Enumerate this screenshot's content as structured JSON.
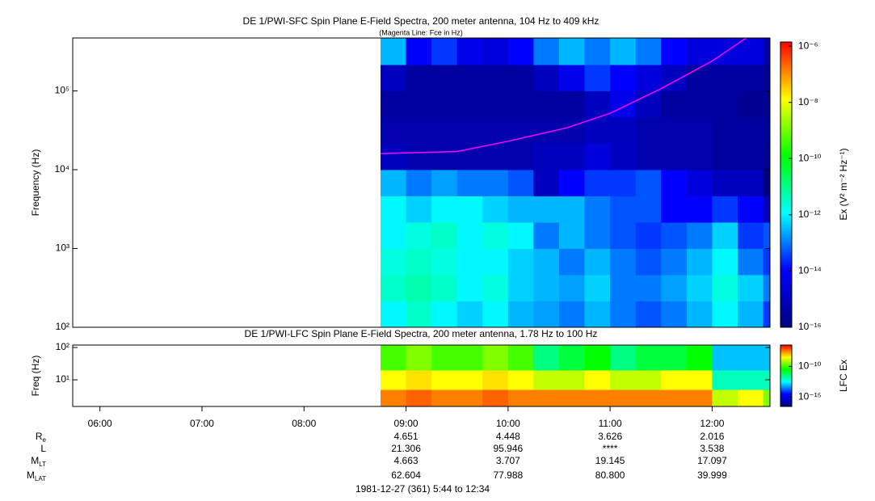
{
  "chart_data": [
    {
      "type": "heatmap",
      "title": "DE 1/PWI-SFC  Spin Plane E-Field Spectra, 200 meter antenna, 104 Hz to 409 kHz",
      "subtitle": "(Magenta Line: Fce in Hz)",
      "ylabel": "Frequency (Hz)",
      "colorbar_label": "Ex (V² m⁻² Hz⁻¹)",
      "xlim": [
        344,
        754
      ],
      "ylim": [
        100,
        470000
      ],
      "yscale": "log",
      "yticks": [
        {
          "value": 100,
          "label": "10²"
        },
        {
          "value": 1000,
          "label": "10³"
        },
        {
          "value": 10000,
          "label": "10⁴"
        },
        {
          "value": 100000,
          "label": "10⁵"
        }
      ],
      "x_bins": [
        525,
        540,
        555,
        570,
        585,
        600,
        615,
        630,
        645,
        660,
        675,
        690,
        705,
        720,
        735,
        750,
        754
      ],
      "y_bins": [
        100,
        215,
        464,
        1000,
        2150,
        4640,
        10000,
        21500,
        46400,
        100000,
        215000,
        470000
      ],
      "z": [
        [
          1e-12,
          3e-12,
          1e-12,
          5e-13,
          1e-12,
          3e-13,
          2e-13,
          1e-13,
          3e-13,
          1e-13,
          5e-14,
          1e-13,
          3e-13,
          1e-12,
          3e-13,
          3e-14
        ],
        [
          3e-12,
          5e-12,
          3e-12,
          1e-12,
          2e-12,
          5e-13,
          3e-13,
          2e-13,
          5e-13,
          1e-13,
          1e-13,
          2e-13,
          5e-13,
          2e-12,
          5e-13,
          1e-13
        ],
        [
          2e-12,
          3e-12,
          2e-12,
          1e-12,
          1e-12,
          5e-13,
          3e-13,
          1e-13,
          3e-13,
          1e-13,
          5e-14,
          1e-13,
          3e-13,
          1e-12,
          1e-13,
          3e-14
        ],
        [
          1e-12,
          2e-12,
          3e-12,
          1e-12,
          2e-12,
          1e-12,
          1e-13,
          3e-13,
          1e-13,
          5e-14,
          3e-14,
          5e-14,
          1e-13,
          5e-13,
          3e-14,
          5e-14
        ],
        [
          1e-12,
          5e-13,
          1e-12,
          1e-12,
          5e-13,
          3e-13,
          3e-13,
          3e-13,
          1e-13,
          5e-14,
          5e-14,
          1e-14,
          1e-14,
          3e-14,
          1e-14,
          1e-15
        ],
        [
          3e-13,
          1e-13,
          2e-13,
          1e-13,
          1e-13,
          5e-14,
          1e-15,
          1e-14,
          3e-14,
          3e-14,
          5e-14,
          1e-14,
          3e-15,
          1e-15,
          1e-15,
          1e-16
        ],
        [
          1e-15,
          5e-16,
          5e-16,
          5e-16,
          5e-16,
          5e-16,
          1e-15,
          1e-15,
          3e-15,
          1e-15,
          5e-16,
          5e-16,
          5e-16,
          3e-16,
          3e-16,
          2e-16
        ],
        [
          5e-16,
          5e-16,
          5e-16,
          5e-16,
          5e-16,
          5e-16,
          5e-16,
          5e-16,
          1e-15,
          1e-15,
          5e-16,
          5e-16,
          5e-16,
          3e-16,
          3e-16,
          3e-16
        ],
        [
          3e-16,
          3e-16,
          3e-16,
          3e-16,
          3e-16,
          3e-16,
          3e-16,
          3e-16,
          1e-15,
          5e-15,
          1e-15,
          3e-16,
          3e-16,
          3e-16,
          2e-16,
          2e-16
        ],
        [
          1e-15,
          3e-16,
          3e-16,
          3e-16,
          3e-16,
          3e-16,
          1e-15,
          5e-15,
          3e-14,
          1e-14,
          3e-15,
          1e-15,
          3e-16,
          3e-16,
          3e-16,
          2e-16
        ],
        [
          3e-13,
          1e-14,
          3e-14,
          5e-15,
          3e-15,
          1e-14,
          1e-13,
          3e-13,
          1e-13,
          3e-13,
          1e-13,
          1e-14,
          3e-15,
          3e-15,
          3e-15,
          5e-16
        ]
      ],
      "colormap": [
        "#000080",
        "#0000ff",
        "#00ffff",
        "#00ff00",
        "#ffff00",
        "#ff0000"
      ],
      "clim": [
        1e-16,
        1.4e-06
      ],
      "cticks": [
        {
          "value": 1e-06,
          "label": "10⁻⁶"
        },
        {
          "value": 1e-08,
          "label": "10⁻⁸"
        },
        {
          "value": 1e-10,
          "label": "10⁻¹⁰"
        },
        {
          "value": 1e-12,
          "label": "10⁻¹²"
        },
        {
          "value": 1e-14,
          "label": "10⁻¹⁴"
        },
        {
          "value": 1e-16,
          "label": "10⁻¹⁶"
        }
      ],
      "line": {
        "color": "#ff00ff",
        "x": [
          525,
          570,
          600,
          634.5,
          660,
          690,
          720,
          740
        ],
        "y": [
          16000,
          17000,
          23000,
          34000,
          52000,
          107000,
          240000,
          470000
        ]
      }
    },
    {
      "type": "heatmap",
      "title": "DE 1/PWI-LFC  Spin Plane E-Field Spectra, 200 meter antenna, 1.78 Hz to 100 Hz",
      "ylabel": "Freq (Hz)",
      "colorbar_label": "LFC Ex",
      "xlim": [
        344,
        754
      ],
      "ylim": [
        1.5,
        119
      ],
      "yscale": "log",
      "yticks": [
        {
          "value": 10,
          "label": "10¹"
        },
        {
          "value": 100,
          "label": "10²"
        }
      ],
      "xticks": [
        {
          "value": 360,
          "label": "06:00"
        },
        {
          "value": 420,
          "label": "07:00"
        },
        {
          "value": 480,
          "label": "08:00"
        },
        {
          "value": 540,
          "label": "09:00"
        },
        {
          "value": 600,
          "label": "10:00"
        },
        {
          "value": 660,
          "label": "11:00"
        },
        {
          "value": 720,
          "label": "12:00"
        }
      ],
      "x_bins": [
        525,
        540,
        555,
        570,
        585,
        600,
        615,
        630,
        645,
        660,
        675,
        690,
        705,
        720,
        735,
        750,
        754
      ],
      "y_bins": [
        1.5,
        5,
        20,
        119
      ],
      "z": [
        [
          3e-08,
          5e-08,
          3e-08,
          3e-08,
          5e-08,
          3e-08,
          3e-08,
          3e-08,
          3e-08,
          3e-08,
          3e-08,
          3e-08,
          3e-08,
          1e-09,
          3e-09,
          3e-10
        ],
        [
          3e-09,
          5e-09,
          3e-09,
          3e-09,
          5e-09,
          3e-09,
          1e-09,
          1e-09,
          3e-09,
          1e-09,
          1e-09,
          3e-09,
          3e-09,
          1e-12,
          1e-12,
          1e-12
        ],
        [
          1e-10,
          3e-10,
          1e-10,
          1e-10,
          3e-10,
          1e-10,
          3e-12,
          1e-11,
          3e-11,
          3e-12,
          1e-11,
          1e-11,
          3e-11,
          1e-13,
          1e-13,
          1e-13
        ]
      ],
      "colormap": [
        "#000080",
        "#0000ff",
        "#00ffff",
        "#00ff00",
        "#ffff00",
        "#ff0000"
      ],
      "clim": [
        3e-17,
        3e-07
      ],
      "cticks": [
        {
          "value": 1e-10,
          "label": "10⁻¹⁰"
        },
        {
          "value": 1e-15,
          "label": "10⁻¹⁵"
        }
      ]
    }
  ],
  "ephemeris": {
    "rows": [
      {
        "label": "R",
        "sub": "e",
        "values": [
          "4.651",
          "4.448",
          "3.626",
          "2.016"
        ]
      },
      {
        "label": "L",
        "values": [
          "21.306",
          "95.946",
          "****",
          "3.538"
        ]
      },
      {
        "label": "M",
        "sub": "LT",
        "values": [
          "4.663",
          "3.707",
          "19.145",
          "17.097"
        ]
      },
      {
        "label": "M",
        "sub": "LAT",
        "values": [
          "62.604",
          "77.988",
          "80.800",
          "39.999"
        ]
      }
    ]
  },
  "footer": "1981-12-27 (361) 5:44 to 12:34"
}
